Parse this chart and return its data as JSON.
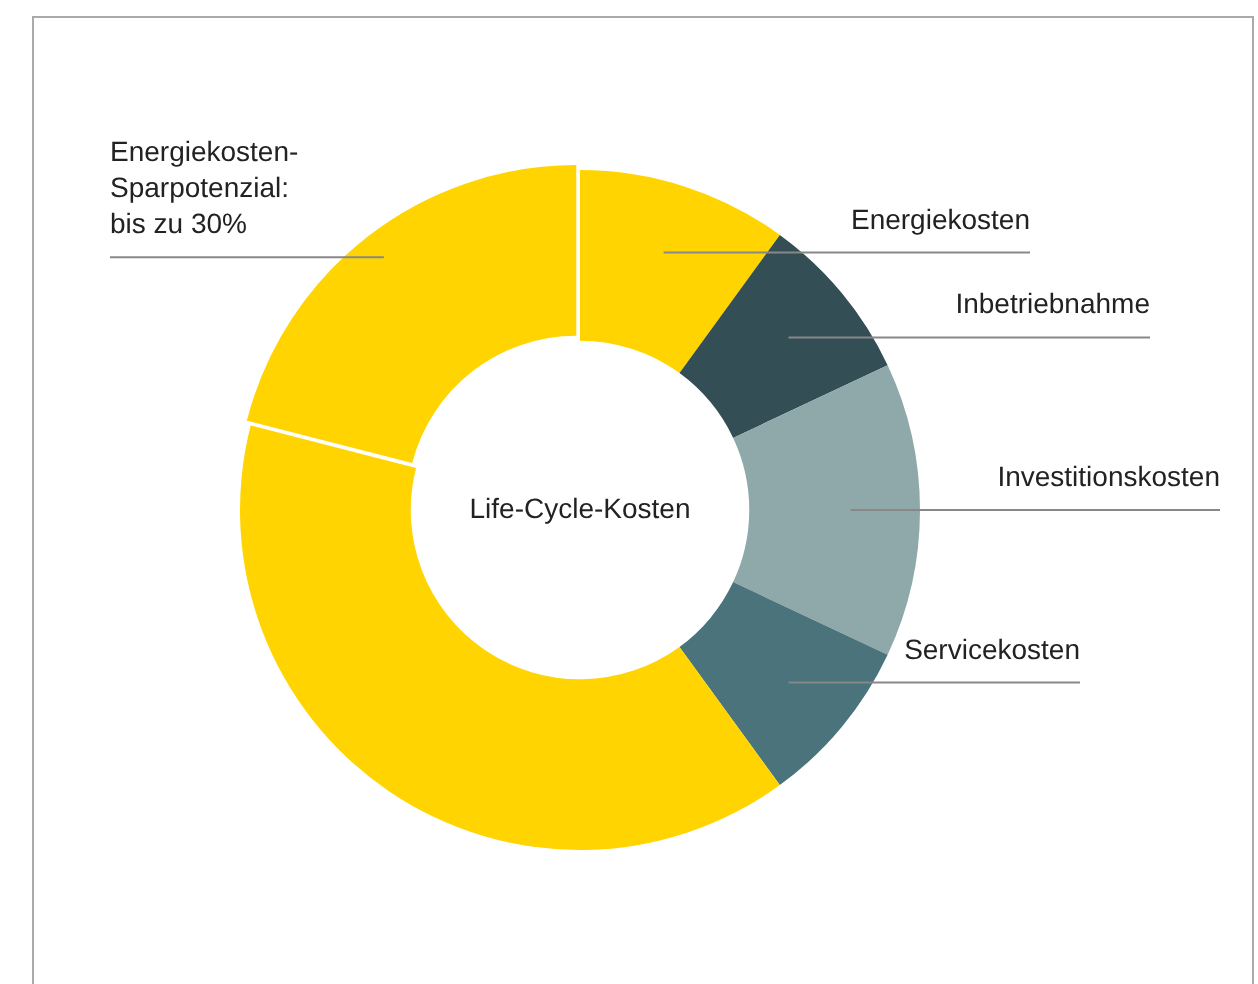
{
  "chart_data": {
    "type": "donut",
    "categories": [
      "Energiekosten-\nSparpotenzial:\nbis zu 30%",
      "Energiekosten",
      "Inbetriebnahme",
      "Investitionskosten",
      "Servicekosten",
      null
    ],
    "values": [
      21,
      10,
      8,
      14,
      8,
      39
    ],
    "colors": [
      "#ffd400",
      "#ffd400",
      "#334f55",
      "#8fa8aa",
      "#4a737b",
      "#ffd400"
    ],
    "annotations": [
      "Life-Cycle-Kosten"
    ],
    "legend": false
  }
}
